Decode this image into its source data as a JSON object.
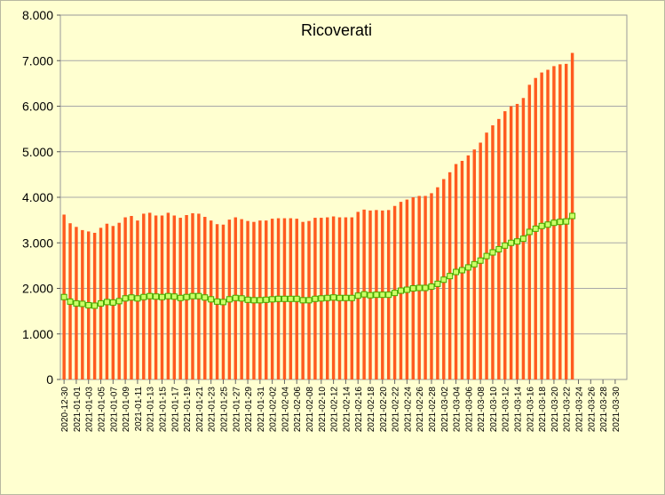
{
  "chart_data": {
    "type": "bar",
    "title": "Ricoverati",
    "xlabel": "",
    "ylabel": "",
    "ylim": [
      0,
      8000
    ],
    "yticks": [
      "0",
      "1.000",
      "2.000",
      "3.000",
      "4.000",
      "5.000",
      "6.000",
      "7.000",
      "8.000"
    ],
    "grid": true,
    "legend": "none",
    "colors": {
      "bars": "#ff5a1f",
      "bar_edge": "#cc3300",
      "line": "#66cc00",
      "marker_fill": "#ccff66",
      "marker_edge": "#44aa00",
      "plot_bg": "#ffffd0",
      "grid": "#a8a8a8"
    },
    "x_tick_labels": [
      "2020-12-30",
      "2021-01-01",
      "2021-01-03",
      "2021-01-05",
      "2021-01-07",
      "2021-01-09",
      "2021-01-11",
      "2021-01-13",
      "2021-01-15",
      "2021-01-17",
      "2021-01-19",
      "2021-01-21",
      "2021-01-23",
      "2021-01-25",
      "2021-01-27",
      "2021-01-29",
      "2021-01-31",
      "2021-02-02",
      "2021-02-04",
      "2021-02-06",
      "2021-02-08",
      "2021-02-10",
      "2021-02-12",
      "2021-02-14",
      "2021-02-16",
      "2021-02-18",
      "2021-02-20",
      "2021-02-22",
      "2021-02-24",
      "2021-02-26",
      "2021-02-28",
      "2021-03-02",
      "2021-03-04",
      "2021-03-06",
      "2021-03-08",
      "2021-03-10",
      "2021-03-12",
      "2021-03-14",
      "2021-03-16",
      "2021-03-18",
      "2021-03-20",
      "2021-03-22",
      "2021-03-24",
      "2021-03-26",
      "2021-03-28",
      "2021-03-30"
    ],
    "categories": [
      "2020-12-30",
      "2020-12-31",
      "2021-01-01",
      "2021-01-02",
      "2021-01-03",
      "2021-01-04",
      "2021-01-05",
      "2021-01-06",
      "2021-01-07",
      "2021-01-08",
      "2021-01-09",
      "2021-01-10",
      "2021-01-11",
      "2021-01-12",
      "2021-01-13",
      "2021-01-14",
      "2021-01-15",
      "2021-01-16",
      "2021-01-17",
      "2021-01-18",
      "2021-01-19",
      "2021-01-20",
      "2021-01-21",
      "2021-01-22",
      "2021-01-23",
      "2021-01-24",
      "2021-01-25",
      "2021-01-26",
      "2021-01-27",
      "2021-01-28",
      "2021-01-29",
      "2021-01-30",
      "2021-01-31",
      "2021-02-01",
      "2021-02-02",
      "2021-02-03",
      "2021-02-04",
      "2021-02-05",
      "2021-02-06",
      "2021-02-07",
      "2021-02-08",
      "2021-02-09",
      "2021-02-10",
      "2021-02-11",
      "2021-02-12",
      "2021-02-13",
      "2021-02-14",
      "2021-02-15",
      "2021-02-16",
      "2021-02-17",
      "2021-02-18",
      "2021-02-19",
      "2021-02-20",
      "2021-02-21",
      "2021-02-22",
      "2021-02-23",
      "2021-02-24",
      "2021-02-25",
      "2021-02-26",
      "2021-02-27",
      "2021-02-28",
      "2021-03-01",
      "2021-03-02",
      "2021-03-03",
      "2021-03-04",
      "2021-03-05",
      "2021-03-06",
      "2021-03-07",
      "2021-03-08",
      "2021-03-09",
      "2021-03-10",
      "2021-03-11",
      "2021-03-12",
      "2021-03-13",
      "2021-03-14",
      "2021-03-15",
      "2021-03-16",
      "2021-03-17",
      "2021-03-18",
      "2021-03-19",
      "2021-03-20",
      "2021-03-21",
      "2021-03-22",
      "2021-03-23",
      "2021-03-24",
      "2021-03-25",
      "2021-03-26",
      "2021-03-27",
      "2021-03-28",
      "2021-03-29",
      "2021-03-30",
      "2021-03-31"
    ],
    "series": [
      {
        "type": "bar",
        "values": [
          3620,
          3430,
          3350,
          3280,
          3250,
          3220,
          3330,
          3420,
          3370,
          3440,
          3560,
          3590,
          3490,
          3640,
          3660,
          3600,
          3600,
          3660,
          3600,
          3550,
          3610,
          3650,
          3640,
          3570,
          3490,
          3410,
          3400,
          3510,
          3560,
          3520,
          3480,
          3460,
          3490,
          3490,
          3530,
          3540,
          3540,
          3540,
          3530,
          3460,
          3480,
          3550,
          3550,
          3560,
          3580,
          3560,
          3560,
          3560,
          3680,
          3730,
          3710,
          3720,
          3710,
          3720,
          3810,
          3900,
          3950,
          4000,
          4030,
          4030,
          4090,
          4220,
          4400,
          4550,
          4730,
          4800,
          4920,
          5050,
          5200,
          5420,
          5580,
          5720,
          5890,
          6000,
          6050,
          6180,
          6470,
          6620,
          6740,
          6800,
          6880,
          6920,
          6930,
          7170,
          null,
          null,
          null,
          null,
          null,
          null,
          null,
          null
        ]
      },
      {
        "type": "line",
        "values": [
          1810,
          1710,
          1670,
          1660,
          1630,
          1620,
          1670,
          1700,
          1690,
          1720,
          1780,
          1800,
          1780,
          1810,
          1830,
          1820,
          1810,
          1830,
          1820,
          1790,
          1810,
          1830,
          1830,
          1800,
          1760,
          1710,
          1700,
          1760,
          1790,
          1780,
          1750,
          1740,
          1740,
          1750,
          1760,
          1770,
          1770,
          1770,
          1770,
          1740,
          1740,
          1770,
          1780,
          1790,
          1800,
          1790,
          1790,
          1790,
          1840,
          1870,
          1850,
          1860,
          1860,
          1860,
          1900,
          1950,
          1970,
          2000,
          2010,
          2010,
          2040,
          2100,
          2190,
          2270,
          2360,
          2400,
          2460,
          2530,
          2610,
          2710,
          2790,
          2860,
          2940,
          3000,
          3030,
          3090,
          3240,
          3310,
          3370,
          3400,
          3440,
          3460,
          3470,
          3590,
          null,
          null,
          null,
          null,
          null,
          null,
          null,
          null
        ]
      }
    ]
  }
}
